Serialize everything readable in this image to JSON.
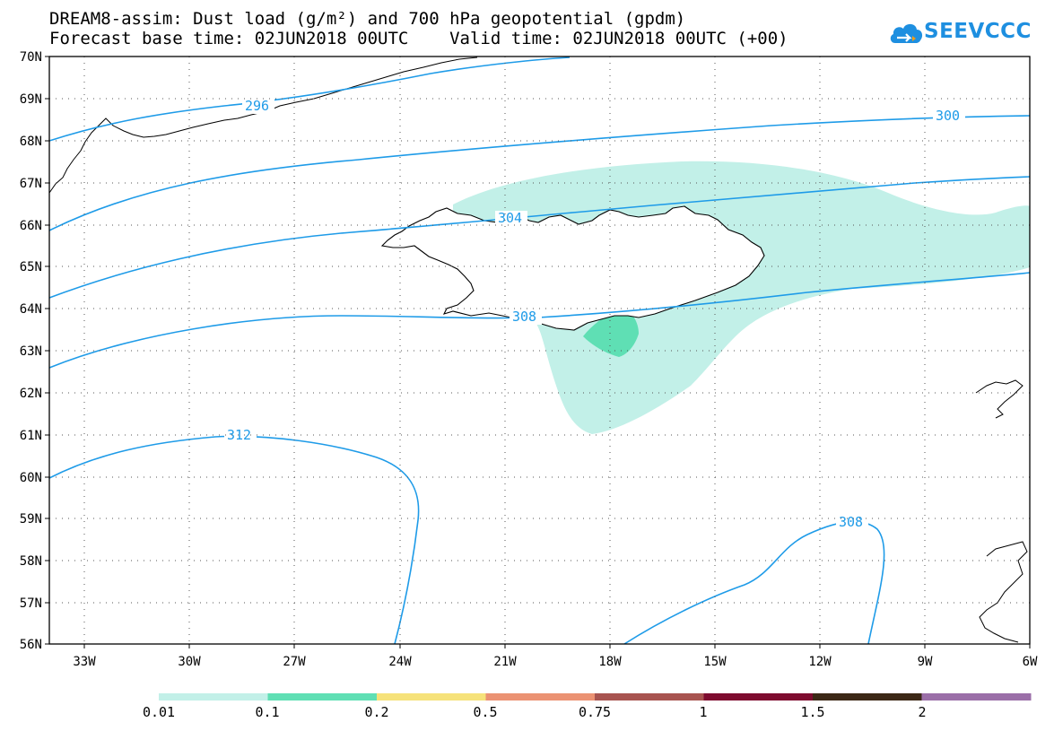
{
  "header": {
    "title_line1": "DREAM8-assim: Dust load (g/m²) and 700 hPa geopotential (gpdm)",
    "title_line2": "Forecast base time: 02JUN2018 00UTC    Valid time: 02JUN2018 00UTC (+00)"
  },
  "logo": {
    "text": "SEEVCCC",
    "icon": "cloud-icon",
    "color": "#1e8fe0"
  },
  "map": {
    "region": "North Atlantic / Iceland",
    "lon_range": [
      -34,
      -6
    ],
    "lat_range": [
      56,
      70
    ],
    "lat_labels": [
      "70N",
      "69N",
      "68N",
      "67N",
      "66N",
      "65N",
      "64N",
      "63N",
      "62N",
      "61N",
      "60N",
      "59N",
      "58N",
      "57N",
      "56N"
    ],
    "lon_labels": [
      "33W",
      "30W",
      "27W",
      "24W",
      "21W",
      "18W",
      "15W",
      "12W",
      "9W",
      "6W"
    ],
    "grid": "dotted",
    "contour_color": "#1e9be8",
    "contour_labels": [
      "296",
      "300",
      "304",
      "308",
      "312",
      "308"
    ]
  },
  "colorbar": {
    "labels": [
      "0.01",
      "0.1",
      "0.2",
      "0.5",
      "0.75",
      "1",
      "1.5",
      "2"
    ],
    "colors": [
      "#c2f0e8",
      "#5fdfb4",
      "#f6e27a",
      "#eb9273",
      "#a85450",
      "#7e0b2f",
      "#3c2816",
      "#9b6fa8"
    ]
  }
}
